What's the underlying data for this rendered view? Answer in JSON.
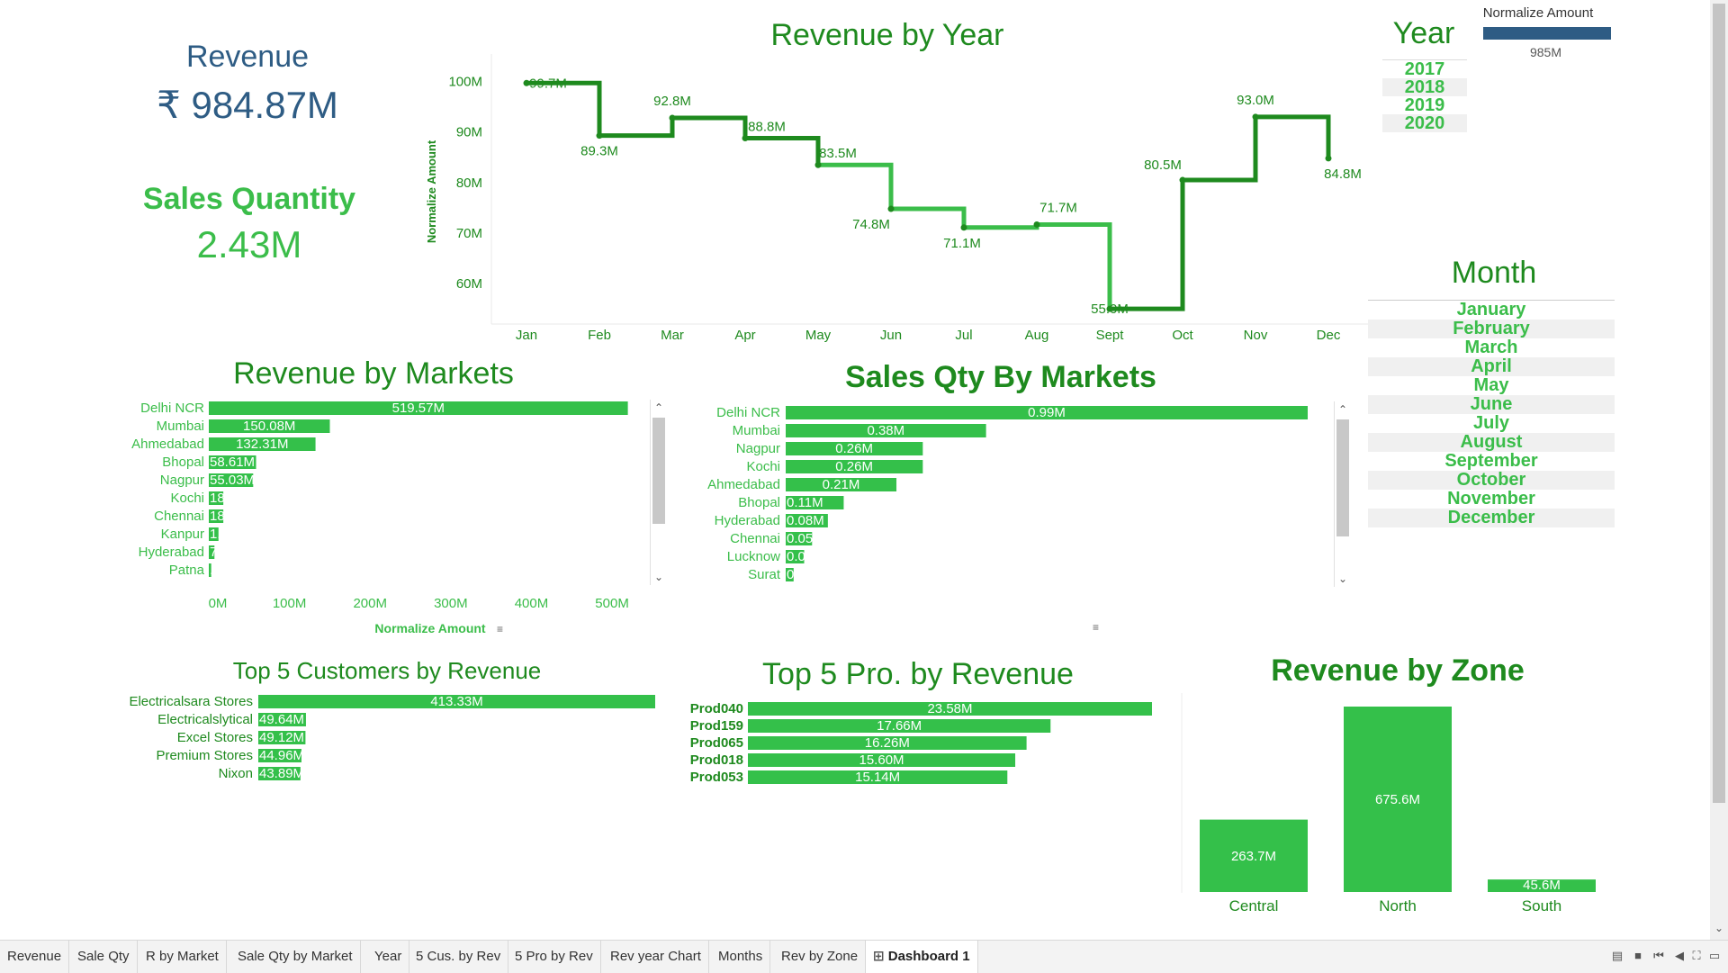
{
  "kpis": {
    "revenue_label": "Revenue",
    "revenue_value": "₹ 984.87M",
    "qty_label": "Sales Quantity",
    "qty_value": "2.43M"
  },
  "titles": {
    "rev_year": "Revenue by Year",
    "rev_markets": "Revenue by Markets",
    "qty_markets": "Sales Qty By Markets",
    "top_customers": "Top 5 Customers by Revenue",
    "top_products": "Top 5 Pro. by Revenue",
    "rev_zone": "Revenue by Zone"
  },
  "filters": {
    "year_label": "Year",
    "years": [
      "2017",
      "2018",
      "2019",
      "2020"
    ],
    "month_label": "Month",
    "months": [
      "January",
      "February",
      "March",
      "April",
      "May",
      "June",
      "July",
      "August",
      "September",
      "October",
      "November",
      "December"
    ],
    "legend_title": "Normalize Amount",
    "legend_value": "985M",
    "legend_color": "#2e5c84"
  },
  "colors": {
    "bar": "#34c04a",
    "line_dark": "#1e8a1e",
    "line_light": "#3bbd4a",
    "text_green": "#1e8a1e",
    "label_green": "#3bbd4a"
  },
  "chart_data": [
    {
      "type": "line",
      "title": "Revenue by Year",
      "ylabel": "Normalize Amount",
      "x": [
        "Jan",
        "Feb",
        "Mar",
        "Apr",
        "May",
        "Jun",
        "Jul",
        "Aug",
        "Sept",
        "Oct",
        "Nov",
        "Dec"
      ],
      "values": [
        99.7,
        89.3,
        92.8,
        88.8,
        83.5,
        74.8,
        71.1,
        71.7,
        55.0,
        80.5,
        93.0,
        84.8
      ],
      "labels": [
        "99.7M",
        "89.3M",
        "92.8M",
        "88.8M",
        "83.5M",
        "74.8M",
        "71.1M",
        "71.7M",
        "55.0M",
        "80.5M",
        "93.0M",
        "84.8M"
      ],
      "yticks": [
        "100M",
        "90M",
        "80M",
        "70M",
        "60M"
      ],
      "ytick_values": [
        100,
        90,
        80,
        70,
        60
      ],
      "ylim": [
        52,
        101
      ]
    },
    {
      "type": "bar",
      "title": "Revenue by Markets",
      "xlabel": "Normalize Amount",
      "categories": [
        "Delhi NCR",
        "Mumbai",
        "Ahmedabad",
        "Bhopal",
        "Nagpur",
        "Kochi",
        "Chennai",
        "Kanpur",
        "Hyderabad",
        "Patna"
      ],
      "values": [
        519.57,
        150.08,
        132.31,
        58.61,
        55.03,
        18,
        18,
        12,
        7,
        3
      ],
      "labels": [
        "519.57M",
        "150.08M",
        "132.31M",
        "58.61M",
        "55.03M",
        "18",
        "18",
        "1.",
        "7",
        "."
      ],
      "xticks": [
        "0M",
        "100M",
        "200M",
        "300M",
        "400M",
        "500M"
      ],
      "xtick_values": [
        0,
        100,
        200,
        300,
        400,
        500
      ],
      "xlim": [
        0,
        520
      ]
    },
    {
      "type": "bar",
      "title": "Sales Qty By Markets",
      "categories": [
        "Delhi NCR",
        "Mumbai",
        "Nagpur",
        "Kochi",
        "Ahmedabad",
        "Bhopal",
        "Hyderabad",
        "Chennai",
        "Lucknow",
        "Surat"
      ],
      "values": [
        0.99,
        0.38,
        0.26,
        0.26,
        0.21,
        0.11,
        0.08,
        0.05,
        0.035,
        0.015
      ],
      "labels": [
        "0.99M",
        "0.38M",
        "0.26M",
        "0.26M",
        "0.21M",
        "0.11M",
        "0.08M",
        "0.05",
        "0.0",
        "0"
      ],
      "xlim": [
        0,
        0.99
      ]
    },
    {
      "type": "bar",
      "title": "Top 5 Customers by Revenue",
      "categories": [
        "Electricalsara Stores",
        "Electricalslytical",
        "Excel Stores",
        "Premium Stores",
        "Nixon"
      ],
      "values": [
        413.33,
        49.64,
        49.12,
        44.96,
        43.89
      ],
      "labels": [
        "413.33M",
        "49.64M",
        "49.12M",
        "44.96M",
        "43.89M"
      ],
      "xlim": [
        0,
        413.33
      ]
    },
    {
      "type": "bar",
      "title": "Top 5 Pro. by Revenue",
      "categories": [
        "Prod040",
        "Prod159",
        "Prod065",
        "Prod018",
        "Prod053"
      ],
      "values": [
        23.58,
        17.66,
        16.26,
        15.6,
        15.14
      ],
      "labels": [
        "23.58M",
        "17.66M",
        "16.26M",
        "15.60M",
        "15.14M"
      ],
      "xlim": [
        0,
        23.58
      ]
    },
    {
      "type": "bar",
      "title": "Revenue by Zone",
      "categories": [
        "Central",
        "North",
        "South"
      ],
      "values": [
        263.7,
        675.6,
        45.6
      ],
      "labels": [
        "263.7M",
        "675.6M",
        "45.6M"
      ],
      "ylim": [
        0,
        675.6
      ]
    }
  ],
  "tabs": [
    "Revenue",
    "Sale Qty",
    "R by Market",
    "Sale Qty by Market",
    "Year",
    "5 Cus. by Rev",
    "5 Pro by Rev",
    "Rev year Chart",
    "Months",
    "Rev by Zone",
    "Dashboard 1"
  ],
  "active_tab": "Dashboard 1"
}
